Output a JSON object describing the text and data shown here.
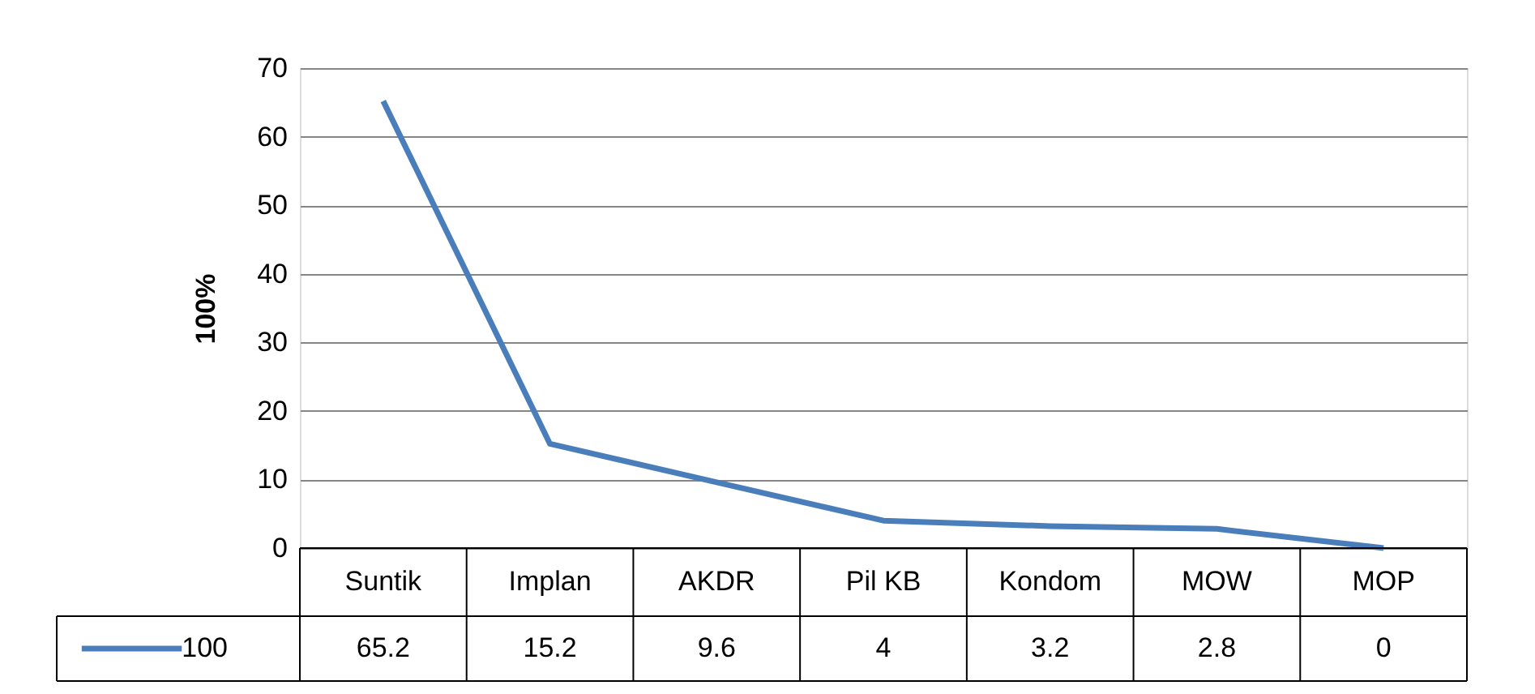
{
  "chart_data": {
    "type": "line",
    "ylabel": "100%",
    "categories": [
      "Suntik",
      "Implan",
      "AKDR",
      "Pil KB",
      "Kondom",
      "MOW",
      "MOP"
    ],
    "series": [
      {
        "name": "100",
        "color": "#4a7ebb",
        "values": [
          65.2,
          15.2,
          9.6,
          4,
          3.2,
          2.8,
          0
        ]
      }
    ],
    "ylim": [
      0,
      70
    ],
    "yticks": [
      0,
      10,
      20,
      30,
      40,
      50,
      60,
      70
    ],
    "grid": "y",
    "data_labels": true,
    "legend": "bottom",
    "marker": "none",
    "line_style": "solid"
  }
}
